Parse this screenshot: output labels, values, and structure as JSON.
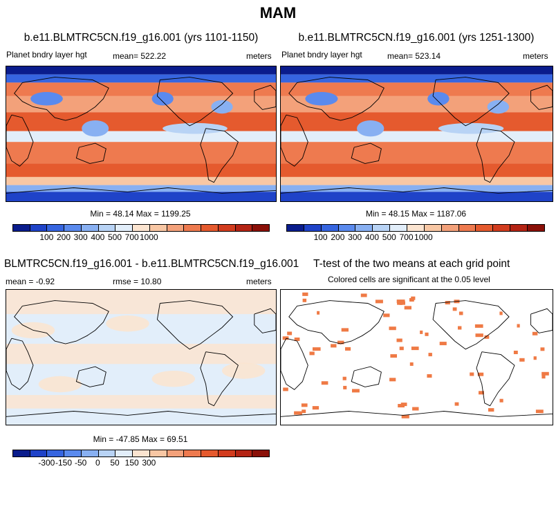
{
  "figure_title": "MAM",
  "panels": [
    {
      "title": "b.e11.BLMTRC5CN.f19_g16.001 (yrs 1101-1150)",
      "variable": "Planet bndry layer hgt",
      "mean_text": "mean= 522.22",
      "units": "meters",
      "minmax_text": "Min =  48.14 Max = 1199.25"
    },
    {
      "title": "b.e11.BLMTRC5CN.f19_g16.001 (yrs 1251-1300)",
      "variable": "Planet bndry layer hgt",
      "mean_text": "mean= 523.14",
      "units": "meters",
      "minmax_text": "Min =  48.15 Max = 1187.06"
    },
    {
      "title": "BLMTRC5CN.f19_g16.001 - b.e11.BLMTRC5CN.f19_g16.001",
      "mean_text": "mean =  -0.92",
      "rmse_text": "rmse =  10.80",
      "units": "meters",
      "minmax_text": "Min = -47.85 Max =  69.51"
    },
    {
      "title": "T-test of the two means at each grid point",
      "subtitle": "Colored cells are significant at the 0.05 level"
    }
  ],
  "colorbars": {
    "absolute": {
      "colors": [
        "#0a1c8c",
        "#1f43c8",
        "#3665e0",
        "#5a8aee",
        "#88b0f2",
        "#b8d3f5",
        "#e2eefa",
        "#fbe4d0",
        "#f8c7a4",
        "#f3a17a",
        "#ee7a4f",
        "#e55a2e",
        "#d23c1e",
        "#b42414",
        "#8a1008"
      ],
      "tick_labels": [
        "100",
        "200",
        "300",
        "400",
        "500",
        "700",
        "1000"
      ]
    },
    "difference": {
      "colors": [
        "#0a1c8c",
        "#1f43c8",
        "#3665e0",
        "#5a8aee",
        "#88b0f2",
        "#b8d3f5",
        "#e2eefa",
        "#fbe4d0",
        "#f8c7a4",
        "#f3a17a",
        "#ee7a4f",
        "#e55a2e",
        "#d23c1e",
        "#b42414",
        "#8a1008"
      ],
      "tick_labels": [
        "-300",
        "-150",
        "-50",
        "0",
        "50",
        "150",
        "300"
      ]
    }
  },
  "chart_data": [
    {
      "type": "heatmap",
      "title": "b.e11.BLMTRC5CN.f19_g16.001 (yrs 1101-1150)",
      "variable": "Planet bndry layer hgt",
      "units": "meters",
      "mean": 522.22,
      "min": 48.14,
      "max": 1199.25,
      "levels": [
        100,
        200,
        300,
        400,
        500,
        700,
        1000
      ],
      "projection": "global cylindrical, centred on Pacific"
    },
    {
      "type": "heatmap",
      "title": "b.e11.BLMTRC5CN.f19_g16.001 (yrs 1251-1300)",
      "variable": "Planet bndry layer hgt",
      "units": "meters",
      "mean": 523.14,
      "min": 48.15,
      "max": 1187.06,
      "levels": [
        100,
        200,
        300,
        400,
        500,
        700,
        1000
      ]
    },
    {
      "type": "heatmap",
      "title": "BLMTRC5CN.f19_g16.001 - b.e11.BLMTRC5CN.f19_g16.001",
      "units": "meters",
      "mean": -0.92,
      "rmse": 10.8,
      "min": -47.85,
      "max": 69.51,
      "levels": [
        -300,
        -150,
        -50,
        0,
        50,
        150,
        300
      ]
    },
    {
      "type": "heatmap",
      "title": "T-test of the two means at each grid point",
      "note": "Colored cells are significant at the 0.05 level",
      "significance_level": 0.05
    }
  ]
}
